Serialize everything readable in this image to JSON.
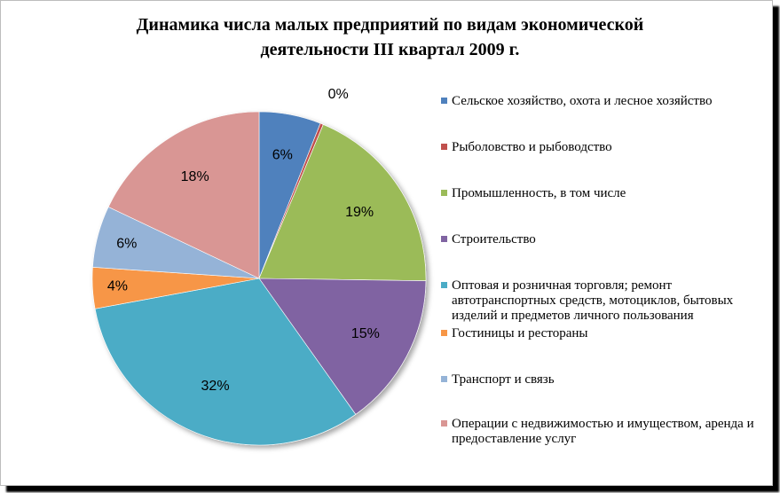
{
  "title_line1": "Динамика числа малых предприятий  по видам экономической",
  "title_line2": "деятельности III квартал 2009 г.",
  "chart_data": {
    "type": "pie",
    "title": "Динамика числа малых предприятий  по видам экономической деятельности III квартал 2009 г.",
    "legend_position": "right",
    "slices": [
      {
        "label": "Сельское хозяйство, охота и лесное хозяйство",
        "value": 6,
        "value_label": "6%",
        "color": "#4f81bd"
      },
      {
        "label": "Рыболовство и рыбоводство",
        "value": 0.3,
        "value_label": "0%",
        "color": "#c0504d"
      },
      {
        "label": "Промышленность, в том числе",
        "value": 19,
        "value_label": "19%",
        "color": "#9bbb59"
      },
      {
        "label": "Строительство",
        "value": 15,
        "value_label": "15%",
        "color": "#8064a2"
      },
      {
        "label": "Оптовая и розничная торговля; ремонт автотранспортных средств, мотоциклов, бытовых изделий и предметов личного пользования",
        "value": 32,
        "value_label": "32%",
        "color": "#4bacc6"
      },
      {
        "label": "Гостиницы и рестораны",
        "value": 4,
        "value_label": "4%",
        "color": "#f79646"
      },
      {
        "label": "Транспорт и связь",
        "value": 6,
        "value_label": "6%",
        "color": "#95b3d7"
      },
      {
        "label": "Операции с недвижимостью и имуществом, аренда и предоставление услуг",
        "value": 18,
        "value_label": "18%",
        "color": "#d99694"
      }
    ]
  }
}
